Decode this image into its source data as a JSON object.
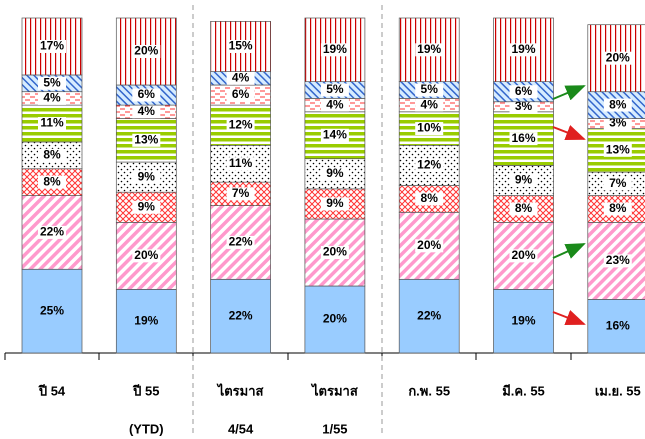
{
  "chart_data": {
    "type": "stacked_bar",
    "categories": [
      [
        "ปี 54"
      ],
      [
        "ปี 55",
        "(YTD)"
      ],
      [
        "ไตรมาส",
        "4/54"
      ],
      [
        "ไตรมาส",
        "1/55"
      ],
      [
        "ก.พ. 55"
      ],
      [
        "มี.ค. 55"
      ],
      [
        "เม.ย. 55"
      ]
    ],
    "ylim": [
      0,
      100
    ],
    "series": [
      {
        "color": "#99ccff",
        "pattern": "solid",
        "values": [
          25,
          19,
          22,
          20,
          22,
          19,
          16
        ],
        "value_labels": [
          "25%",
          "19%",
          "22%",
          "20%",
          "22%",
          "19%",
          "16%"
        ]
      },
      {
        "color": "#ff99cc",
        "pattern": "diagonal",
        "values": [
          22,
          20,
          22,
          20,
          20,
          20,
          23
        ],
        "value_labels": [
          "22%",
          "20%",
          "22%",
          "20%",
          "20%",
          "20%",
          "23%"
        ]
      },
      {
        "color": "#ff3333",
        "pattern": "crosshatch",
        "values": [
          8,
          9,
          7,
          9,
          8,
          8,
          8
        ],
        "value_labels": [
          "8%",
          "9%",
          "7%",
          "9%",
          "8%",
          "8%",
          "8%"
        ]
      },
      {
        "color": "#000000",
        "pattern": "dots",
        "values": [
          8,
          9,
          11,
          9,
          12,
          9,
          7
        ],
        "value_labels": [
          "8%",
          "9%",
          "11%",
          "9%",
          "12%",
          "9%",
          "7%"
        ]
      },
      {
        "color": "#99cc00",
        "pattern": "horizontal",
        "values": [
          11,
          13,
          12,
          14,
          10,
          16,
          13
        ],
        "value_labels": [
          "11%",
          "13%",
          "12%",
          "14%",
          "10%",
          "16%",
          "13%"
        ]
      },
      {
        "color": "#ff3333",
        "pattern": "dashed",
        "values": [
          4,
          4,
          6,
          4,
          4,
          3,
          3
        ],
        "value_labels": [
          "4%",
          "4%",
          "6%",
          "4%",
          "4%",
          "3%",
          "3%"
        ]
      },
      {
        "color": "#3366cc",
        "pattern": "hatch",
        "values": [
          5,
          6,
          4,
          5,
          5,
          6,
          8
        ],
        "value_labels": [
          "5%",
          "6%",
          "4%",
          "5%",
          "5%",
          "6%",
          "8%"
        ]
      },
      {
        "color": "#cc0000",
        "pattern": "vertical",
        "values": [
          17,
          20,
          15,
          19,
          19,
          19,
          20
        ],
        "value_labels": [
          "17%",
          "20%",
          "15%",
          "19%",
          "19%",
          "19%",
          "20%"
        ]
      }
    ]
  }
}
